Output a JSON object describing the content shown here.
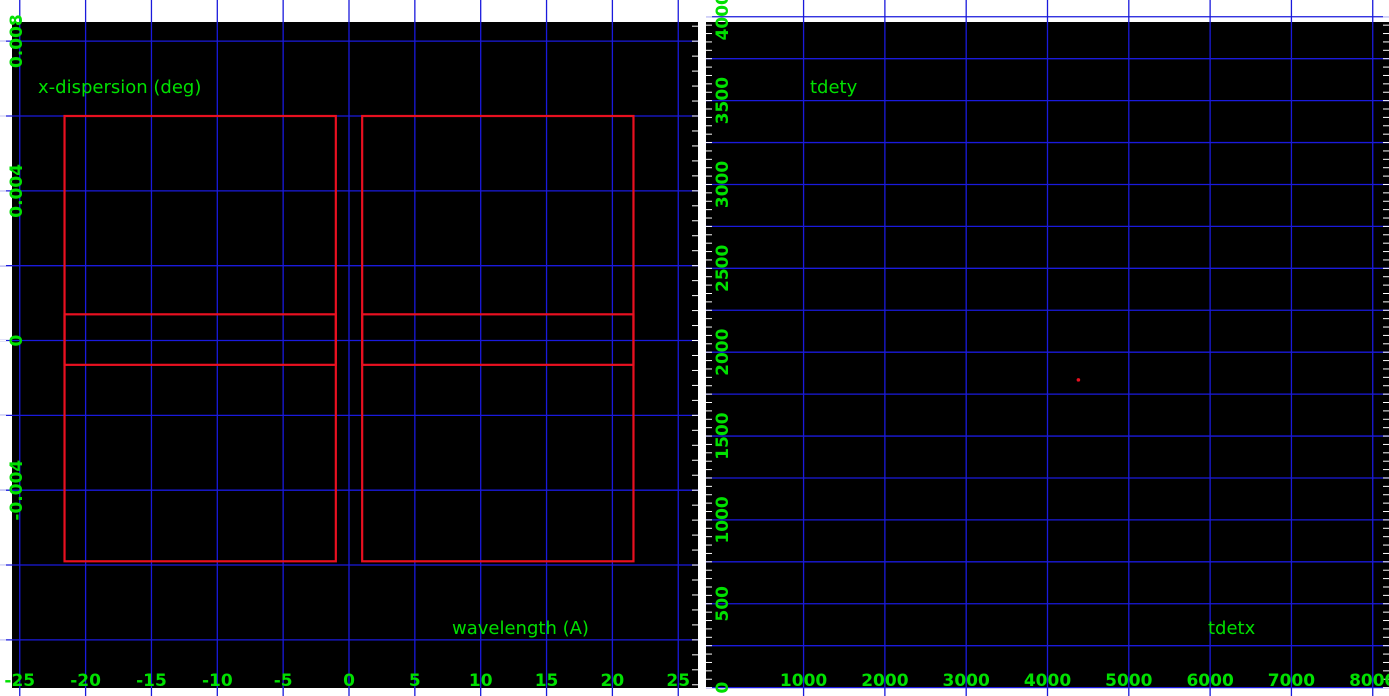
{
  "colors": {
    "background": "#000000",
    "grid": "#1a1adc",
    "text": "#00e000",
    "region": "#e81020"
  },
  "chart_data": [
    {
      "type": "scatter",
      "title": "",
      "xlabel": "wavelength (A)",
      "ylabel": "x-dispersion (deg)",
      "xlim": [
        -26.5,
        26.5
      ],
      "ylim": [
        -0.0095,
        0.0091
      ],
      "grid": true,
      "xticks": [
        {
          "value": -25,
          "label": "-25"
        },
        {
          "value": -20,
          "label": "-20"
        },
        {
          "value": -15,
          "label": "-15"
        },
        {
          "value": -10,
          "label": "-10"
        },
        {
          "value": -5,
          "label": "-5"
        },
        {
          "value": 0,
          "label": "0"
        },
        {
          "value": 5,
          "label": "5"
        },
        {
          "value": 10,
          "label": "10"
        },
        {
          "value": 15,
          "label": "15"
        },
        {
          "value": 20,
          "label": "20"
        },
        {
          "value": 25,
          "label": "25"
        }
      ],
      "yticks": [
        {
          "value": 0.008,
          "label": "0.008"
        },
        {
          "value": 0.004,
          "label": "0.004"
        },
        {
          "value": 0,
          "label": "0"
        },
        {
          "value": -0.004,
          "label": "-0.004"
        }
      ],
      "regions": [
        {
          "x0": -21.6,
          "x1": -1.0,
          "y0": -0.0059,
          "y1": 0.006
        },
        {
          "x0": 1.0,
          "x1": 21.6,
          "y0": -0.0059,
          "y1": 0.006
        },
        {
          "x0": -21.6,
          "x1": -1.0,
          "y0": -0.00065,
          "y1": 0.0007
        },
        {
          "x0": 1.0,
          "x1": 21.6,
          "y0": -0.00065,
          "y1": 0.0007
        }
      ]
    },
    {
      "type": "scatter",
      "title": "",
      "xlabel": "tdetx",
      "ylabel": "tdety",
      "xlim": [
        -200,
        8200
      ],
      "ylim": [
        -50,
        4100
      ],
      "grid": true,
      "xticks": [
        {
          "value": 1000,
          "label": "1000"
        },
        {
          "value": 2000,
          "label": "2000"
        },
        {
          "value": 3000,
          "label": "3000"
        },
        {
          "value": 4000,
          "label": "4000"
        },
        {
          "value": 5000,
          "label": "5000"
        },
        {
          "value": 6000,
          "label": "6000"
        },
        {
          "value": 7000,
          "label": "7000"
        },
        {
          "value": 8000,
          "label": "8000"
        }
      ],
      "yticks": [
        {
          "value": 4000,
          "label": "4000"
        },
        {
          "value": 3500,
          "label": "3500"
        },
        {
          "value": 3000,
          "label": "3000"
        },
        {
          "value": 2500,
          "label": "2500"
        },
        {
          "value": 2000,
          "label": "2000"
        },
        {
          "value": 1500,
          "label": "1500"
        },
        {
          "value": 1000,
          "label": "1000"
        },
        {
          "value": 500,
          "label": "500"
        },
        {
          "value": 0,
          "label": "0"
        }
      ],
      "points": [
        {
          "x": 4380,
          "y": 1835
        }
      ]
    }
  ]
}
